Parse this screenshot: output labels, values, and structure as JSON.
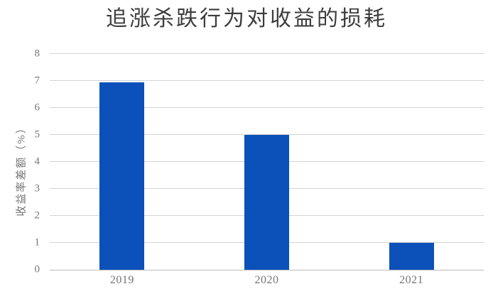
{
  "title": "追涨杀跌行为对收益的损耗",
  "y_axis": {
    "label": "收益率差额（%）",
    "ticks": [
      0,
      1,
      2,
      3,
      4,
      5,
      6,
      7,
      8
    ],
    "min": 0,
    "max": 8
  },
  "x_axis": {
    "labels": [
      "2019",
      "2020",
      "2021"
    ]
  },
  "chart_data": {
    "type": "bar",
    "title": "追涨杀跌行为对收益的损耗",
    "categories": [
      "2019",
      "2020",
      "2021"
    ],
    "values": [
      6.95,
      5,
      1
    ],
    "xlabel": "",
    "ylabel": "收益率差额（%）",
    "ylim": [
      0,
      8
    ],
    "ytick_step": 1,
    "grid": "horizontal",
    "legend": "none"
  },
  "colors": {
    "bar": "#0C50BA",
    "gridline": "#D4D4D4",
    "axis_line": "#BDBDBD",
    "tick_text": "#757575",
    "title_text": "#3C3C3C",
    "background": "#FFFFFF"
  }
}
